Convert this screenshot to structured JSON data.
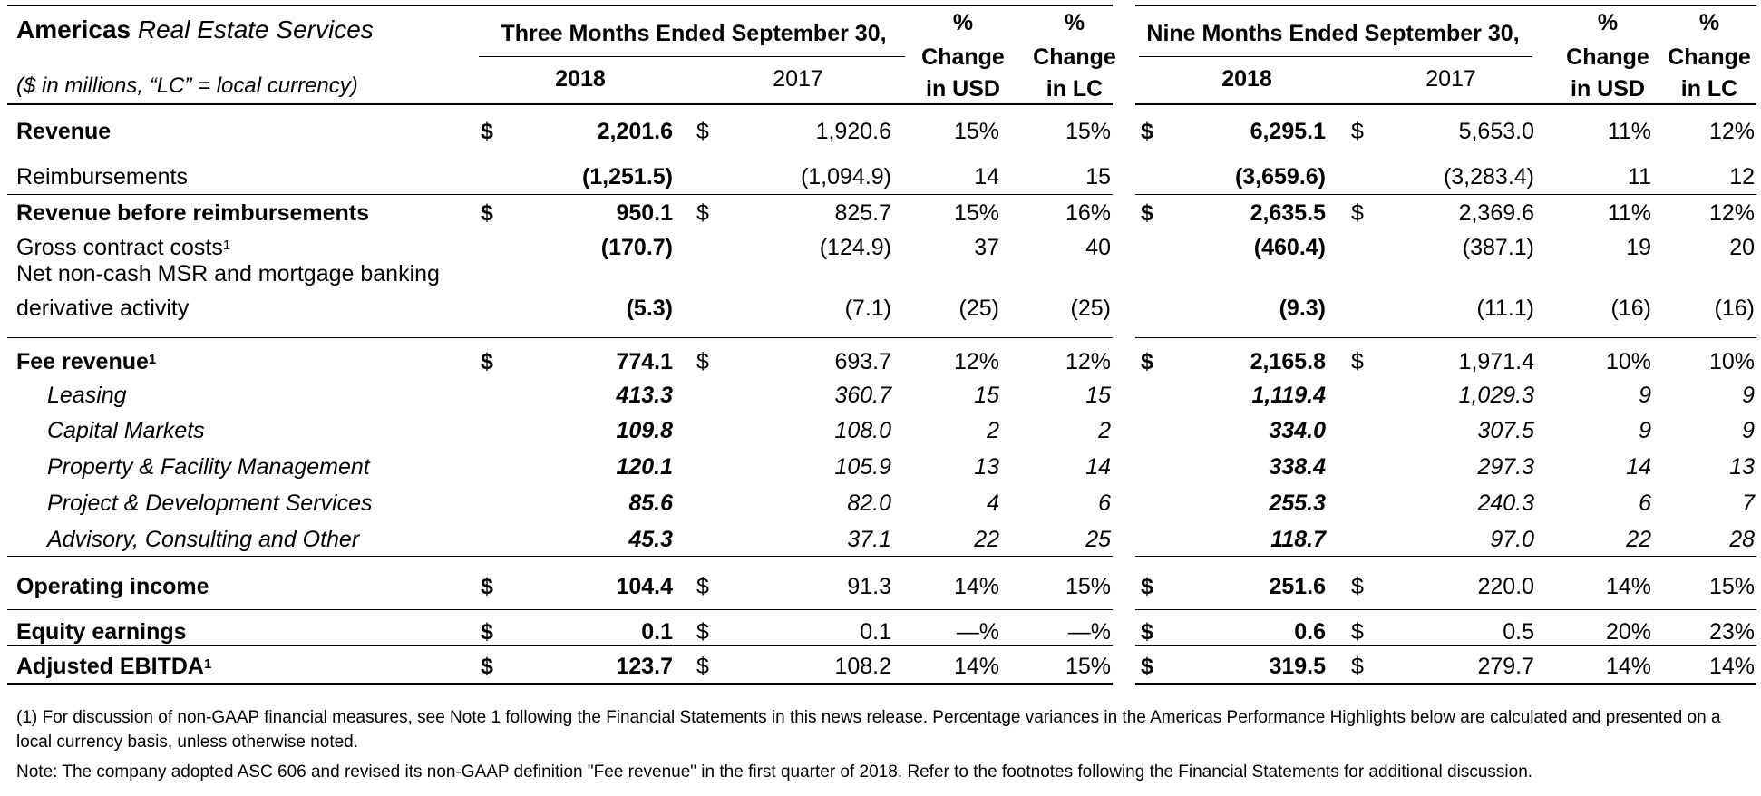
{
  "header": {
    "title_bold": "Americas",
    "title_italic": "Real Estate Services",
    "units_note": "($ in millions, “LC” = local currency)",
    "three_months": "Three Months Ended September 30,",
    "nine_months": "Nine Months Ended September 30,",
    "year_current": "2018",
    "year_prior": "2017",
    "pct": "%",
    "change": "Change",
    "in_usd": "in USD",
    "in_lc": "in LC"
  },
  "rows": [
    {
      "label": "Revenue",
      "sup": "",
      "cur": "$",
      "q18": "2,201.6",
      "q17": "1,920.6",
      "qusd": "15%",
      "qlc": "15%",
      "n18": "6,295.1",
      "n17": "5,653.0",
      "nusd": "11%",
      "nlc": "12%"
    },
    {
      "label": "Reimbursements",
      "sup": "",
      "cur": "",
      "q18": "(1,251.5)",
      "q17": "(1,094.9)",
      "qusd": "14",
      "qlc": "15",
      "n18": "(3,659.6)",
      "n17": "(3,283.4)",
      "nusd": "11",
      "nlc": "12"
    },
    {
      "label": "Revenue before reimbursements",
      "sup": "",
      "cur": "$",
      "q18": "950.1",
      "q17": "825.7",
      "qusd": "15%",
      "qlc": "16%",
      "n18": "2,635.5",
      "n17": "2,369.6",
      "nusd": "11%",
      "nlc": "12%"
    },
    {
      "label": "Gross contract costs",
      "sup": "1",
      "cur": "",
      "q18": "(170.7)",
      "q17": "(124.9)",
      "qusd": "37",
      "qlc": "40",
      "n18": "(460.4)",
      "n17": "(387.1)",
      "nusd": "19",
      "nlc": "20"
    },
    {
      "label_line1": "Net non-cash MSR and mortgage banking",
      "label": "derivative activity",
      "sup": "",
      "cur": "",
      "q18": "(5.3)",
      "q17": "(7.1)",
      "qusd": "(25)",
      "qlc": "(25)",
      "n18": "(9.3)",
      "n17": "(11.1)",
      "nusd": "(16)",
      "nlc": "(16)"
    },
    {
      "label": "Fee revenue",
      "sup": "1",
      "cur": "$",
      "q18": "774.1",
      "q17": "693.7",
      "qusd": "12%",
      "qlc": "12%",
      "n18": "2,165.8",
      "n17": "1,971.4",
      "nusd": "10%",
      "nlc": "10%"
    },
    {
      "label": "Leasing",
      "sup": "",
      "cur": "",
      "q18": "413.3",
      "q17": "360.7",
      "qusd": "15",
      "qlc": "15",
      "n18": "1,119.4",
      "n17": "1,029.3",
      "nusd": "9",
      "nlc": "9"
    },
    {
      "label": "Capital Markets",
      "sup": "",
      "cur": "",
      "q18": "109.8",
      "q17": "108.0",
      "qusd": "2",
      "qlc": "2",
      "n18": "334.0",
      "n17": "307.5",
      "nusd": "9",
      "nlc": "9"
    },
    {
      "label": "Property & Facility Management",
      "sup": "",
      "cur": "",
      "q18": "120.1",
      "q17": "105.9",
      "qusd": "13",
      "qlc": "14",
      "n18": "338.4",
      "n17": "297.3",
      "nusd": "14",
      "nlc": "13"
    },
    {
      "label": "Project & Development Services",
      "sup": "",
      "cur": "",
      "q18": "85.6",
      "q17": "82.0",
      "qusd": "4",
      "qlc": "6",
      "n18": "255.3",
      "n17": "240.3",
      "nusd": "6",
      "nlc": "7"
    },
    {
      "label": "Advisory, Consulting and Other",
      "sup": "",
      "cur": "",
      "q18": "45.3",
      "q17": "37.1",
      "qusd": "22",
      "qlc": "25",
      "n18": "118.7",
      "n17": "97.0",
      "nusd": "22",
      "nlc": "28"
    },
    {
      "label": "Operating income",
      "sup": "",
      "cur": "$",
      "q18": "104.4",
      "q17": "91.3",
      "qusd": "14%",
      "qlc": "15%",
      "n18": "251.6",
      "n17": "220.0",
      "nusd": "14%",
      "nlc": "15%"
    },
    {
      "label": "Equity earnings",
      "sup": "",
      "cur": "$",
      "q18": "0.1",
      "q17": "0.1",
      "qusd": "—%",
      "qlc": "—%",
      "n18": "0.6",
      "n17": "0.5",
      "nusd": "20%",
      "nlc": "23%"
    },
    {
      "label": "Adjusted EBITDA",
      "sup": "1",
      "cur": "$",
      "q18": "123.7",
      "q17": "108.2",
      "qusd": "14%",
      "qlc": "15%",
      "n18": "319.5",
      "n17": "279.7",
      "nusd": "14%",
      "nlc": "14%"
    }
  ],
  "footnotes": {
    "note1": "(1) For discussion of non-GAAP financial measures, see Note 1 following the Financial Statements in this news release. Percentage variances in the Americas Performance Highlights below are calculated and presented on a local currency basis, unless otherwise noted.",
    "note2": "Note: The company adopted ASC 606 and revised its non-GAAP definition \"Fee revenue\" in the first quarter of 2018. Refer to the footnotes following the Financial Statements for additional discussion."
  }
}
